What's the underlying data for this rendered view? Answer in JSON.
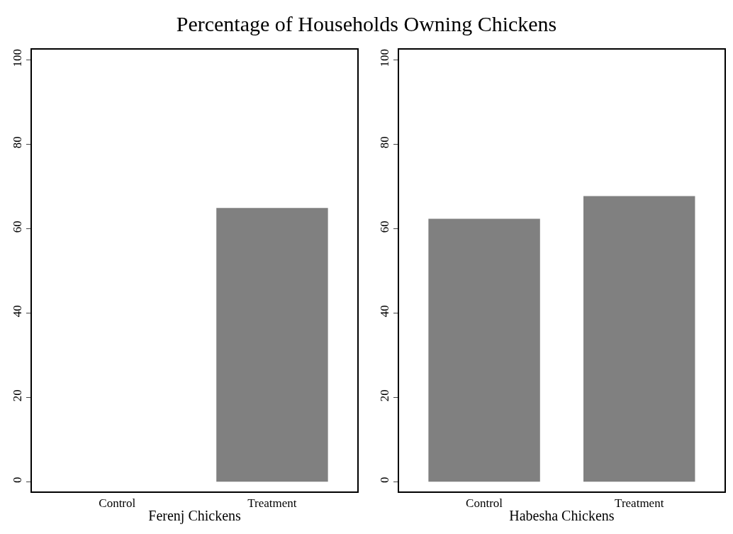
{
  "chart_data": [
    {
      "type": "bar",
      "title": "Percentage of Households Owning Chickens",
      "xlabel": "Ferenj Chickens",
      "categories": [
        "Control",
        "Treatment"
      ],
      "values": [
        0,
        64.9
      ],
      "color": "#808080",
      "ylim": [
        -2.3,
        102.4
      ],
      "yticks": [
        0,
        20,
        40,
        60,
        80,
        100
      ]
    },
    {
      "type": "bar",
      "xlabel": "Habesha Chickens",
      "categories": [
        "Control",
        "Treatment"
      ],
      "values": [
        62.3,
        67.7
      ],
      "color": "#808080",
      "ylim": [
        -2.3,
        102.4
      ],
      "yticks": [
        0,
        20,
        40,
        60,
        80,
        100
      ]
    }
  ]
}
